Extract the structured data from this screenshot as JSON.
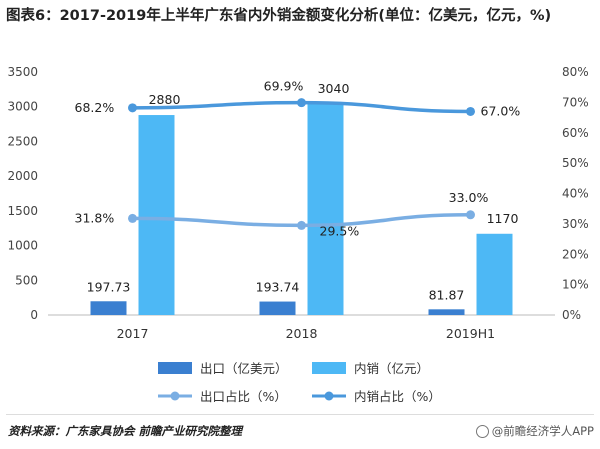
{
  "title": "图表6：2017-2019年上半年广东省内外销金额变化分析(单位：亿美元，亿元，%)",
  "source": "资料来源：广东家具协会 前瞻产业研究院整理",
  "watermark": "@前瞻经济学人APP",
  "colors": {
    "export_bar": "#3a7fd0",
    "domestic_bar": "#4db8f5",
    "export_ratio_line": "#7aaee3",
    "domestic_ratio_line": "#4a98dc"
  },
  "chart_data": {
    "type": "bar",
    "categories": [
      "2017",
      "2018",
      "2019H1"
    ],
    "series": [
      {
        "name": "出口（亿美元）",
        "type": "bar",
        "axis": "left",
        "values": [
          197.73,
          193.74,
          81.87
        ],
        "labels": [
          "197.73",
          "193.74",
          "81.87"
        ]
      },
      {
        "name": "内销（亿元）",
        "type": "bar",
        "axis": "left",
        "values": [
          2880,
          3040,
          1170
        ],
        "labels": [
          "2880",
          "3040",
          "1170"
        ]
      },
      {
        "name": "出口占比（%）",
        "type": "line",
        "axis": "right",
        "values": [
          31.8,
          29.5,
          33.0
        ],
        "labels": [
          "31.8%",
          "29.5%",
          "33.0%"
        ]
      },
      {
        "name": "内销占比（%）",
        "type": "line",
        "axis": "right",
        "values": [
          68.2,
          69.9,
          67.0
        ],
        "labels": [
          "68.2%",
          "69.9%",
          "67.0%"
        ]
      }
    ],
    "y_left": {
      "min": 0,
      "max": 3500,
      "ticks": [
        "0",
        "500",
        "1000",
        "1500",
        "2000",
        "2500",
        "3000",
        "3500"
      ]
    },
    "y_right": {
      "min": 0,
      "max": 80,
      "ticks": [
        "0%",
        "10%",
        "20%",
        "30%",
        "40%",
        "50%",
        "60%",
        "70%",
        "80%"
      ]
    },
    "grid": false,
    "legend_position": "bottom"
  }
}
